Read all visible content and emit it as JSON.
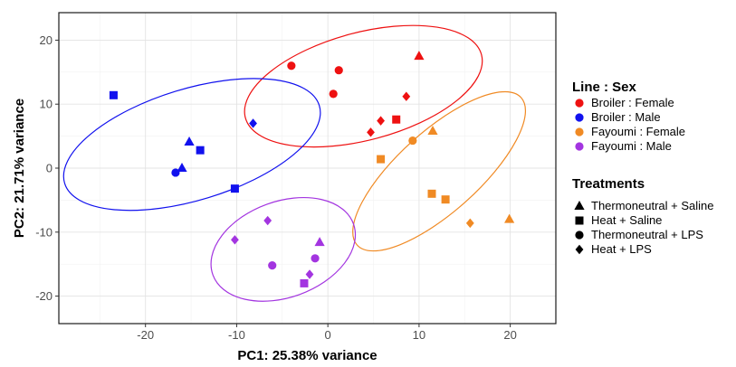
{
  "chart_data": {
    "type": "scatter",
    "xlabel": "PC1: 25.38% variance",
    "ylabel": "PC2: 21.71% variance",
    "xlim": [
      -29.5,
      25
    ],
    "ylim": [
      -24.3,
      24.3
    ],
    "xticks": [
      -20,
      -10,
      0,
      10,
      20
    ],
    "yticks": [
      -20,
      -10,
      0,
      10,
      20
    ],
    "grid": true,
    "legend_placement": "right",
    "groups": [
      {
        "name": "Broiler : Female",
        "color": "#ee1111"
      },
      {
        "name": "Broiler : Male",
        "color": "#1111ee"
      },
      {
        "name": "Fayoumi : Female",
        "color": "#f08a24"
      },
      {
        "name": "Fayoumi : Male",
        "color": "#a335e0"
      }
    ],
    "treatments": [
      {
        "name": "Thermoneutral + Saline",
        "shape": "triangle"
      },
      {
        "name": "Heat + Saline",
        "shape": "square"
      },
      {
        "name": "Thermoneutral + LPS",
        "shape": "circle"
      },
      {
        "name": "Heat + LPS",
        "shape": "diamond"
      }
    ],
    "legend_titles": {
      "color": "Line : Sex",
      "shape": "Treatments"
    },
    "points": [
      {
        "x": -4.0,
        "y": 16.0,
        "group": 0,
        "shape": 2
      },
      {
        "x": 1.2,
        "y": 15.3,
        "group": 0,
        "shape": 2
      },
      {
        "x": 0.6,
        "y": 11.6,
        "group": 0,
        "shape": 2
      },
      {
        "x": 10.0,
        "y": 17.5,
        "group": 0,
        "shape": 0
      },
      {
        "x": 8.6,
        "y": 11.2,
        "group": 0,
        "shape": 3
      },
      {
        "x": 7.5,
        "y": 7.6,
        "group": 0,
        "shape": 1
      },
      {
        "x": 5.8,
        "y": 7.4,
        "group": 0,
        "shape": 3
      },
      {
        "x": 4.7,
        "y": 5.6,
        "group": 0,
        "shape": 3
      },
      {
        "x": -23.5,
        "y": 11.4,
        "group": 1,
        "shape": 1
      },
      {
        "x": -8.2,
        "y": 7.0,
        "group": 1,
        "shape": 3
      },
      {
        "x": -15.2,
        "y": 4.1,
        "group": 1,
        "shape": 0
      },
      {
        "x": -14.0,
        "y": 2.8,
        "group": 1,
        "shape": 1
      },
      {
        "x": -16.0,
        "y": 0.0,
        "group": 1,
        "shape": 0
      },
      {
        "x": -16.7,
        "y": -0.7,
        "group": 1,
        "shape": 2
      },
      {
        "x": -10.2,
        "y": -3.2,
        "group": 1,
        "shape": 1
      },
      {
        "x": 9.3,
        "y": 4.3,
        "group": 2,
        "shape": 2
      },
      {
        "x": 11.5,
        "y": 5.8,
        "group": 2,
        "shape": 0
      },
      {
        "x": 5.8,
        "y": 1.4,
        "group": 2,
        "shape": 1
      },
      {
        "x": 11.4,
        "y": -4.0,
        "group": 2,
        "shape": 1
      },
      {
        "x": 12.9,
        "y": -4.9,
        "group": 2,
        "shape": 1
      },
      {
        "x": 15.6,
        "y": -8.6,
        "group": 2,
        "shape": 3
      },
      {
        "x": 19.9,
        "y": -8.0,
        "group": 2,
        "shape": 0
      },
      {
        "x": -6.6,
        "y": -8.2,
        "group": 3,
        "shape": 3
      },
      {
        "x": -10.2,
        "y": -11.2,
        "group": 3,
        "shape": 3
      },
      {
        "x": -0.9,
        "y": -11.6,
        "group": 3,
        "shape": 0
      },
      {
        "x": -1.4,
        "y": -14.1,
        "group": 3,
        "shape": 2
      },
      {
        "x": -6.1,
        "y": -15.2,
        "group": 3,
        "shape": 2
      },
      {
        "x": -2.0,
        "y": -16.6,
        "group": 3,
        "shape": 3
      },
      {
        "x": -2.6,
        "y": -18.0,
        "group": 3,
        "shape": 1
      }
    ],
    "ellipses": [
      {
        "group": 0,
        "cx": 3.9,
        "cy": 12.8,
        "rx": 13.4,
        "ry": 8.4,
        "angle_deg": -15
      },
      {
        "group": 1,
        "cx": -14.9,
        "cy": 3.7,
        "rx": 14.6,
        "ry": 8.7,
        "angle_deg": -17
      },
      {
        "group": 2,
        "cx": 12.2,
        "cy": -0.5,
        "rx": 12.1,
        "ry": 6.3,
        "angle_deg": -42
      },
      {
        "group": 3,
        "cx": -4.9,
        "cy": -12.7,
        "rx": 8.2,
        "ry": 7.5,
        "angle_deg": -20
      }
    ]
  }
}
